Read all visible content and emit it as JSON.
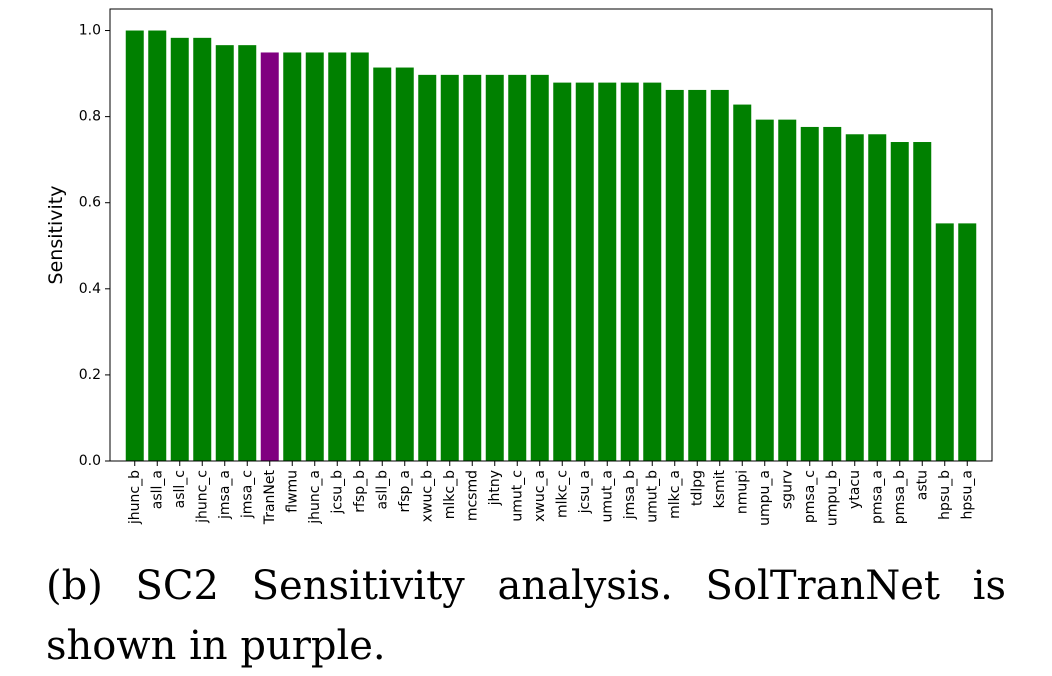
{
  "chart_data": {
    "type": "bar",
    "title": "",
    "xlabel": "",
    "ylabel": "Sensitivity",
    "ylim": [
      0,
      1.05
    ],
    "yticks": [
      "0.0",
      "0.2",
      "0.4",
      "0.6",
      "0.8",
      "1.0"
    ],
    "grid": false,
    "bar_color": "#008000",
    "highlight_color": "#800080",
    "highlight_category": "TranNet",
    "categories": [
      "jhunc_b",
      "asll_a",
      "asll_c",
      "jhunc_c",
      "jmsa_a",
      "jmsa_c",
      "TranNet",
      "flwmu",
      "jhunc_a",
      "jcsu_b",
      "rfsp_b",
      "asll_b",
      "rfsp_a",
      "xwuc_b",
      "mlkc_b",
      "mcsmd",
      "jhtny",
      "umut_c",
      "xwuc_a",
      "mlkc_c",
      "jcsu_a",
      "umut_a",
      "jmsa_b",
      "umut_b",
      "mlkc_a",
      "tdlpg",
      "ksmit",
      "nmupi",
      "umpu_a",
      "sgurv",
      "pmsa_c",
      "umpu_b",
      "ytacu",
      "pmsa_a",
      "pmsa_b",
      "astu",
      "hpsu_b",
      "hpsu_a"
    ],
    "values": [
      1.0,
      1.0,
      0.983,
      0.983,
      0.966,
      0.966,
      0.949,
      0.949,
      0.949,
      0.949,
      0.949,
      0.914,
      0.914,
      0.897,
      0.897,
      0.897,
      0.897,
      0.897,
      0.897,
      0.879,
      0.879,
      0.879,
      0.879,
      0.879,
      0.862,
      0.862,
      0.862,
      0.828,
      0.793,
      0.793,
      0.776,
      0.776,
      0.759,
      0.759,
      0.741,
      0.741,
      0.552,
      0.552
    ]
  },
  "caption": "(b) SC2 Sensitivity analysis. SolTranNet is shown in purple."
}
